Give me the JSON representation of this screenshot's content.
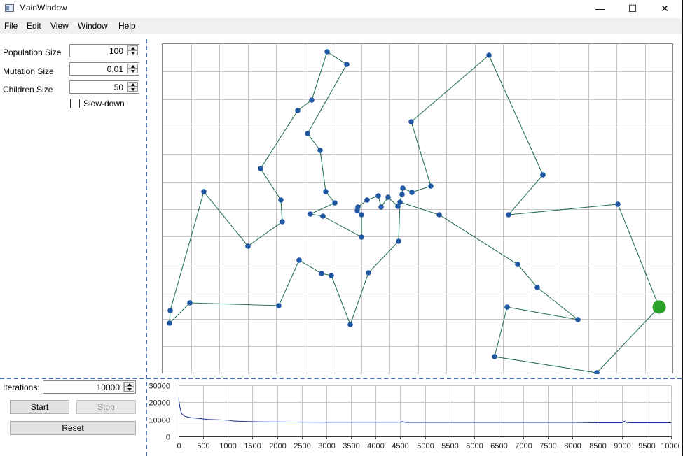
{
  "window": {
    "title": "MainWindow",
    "controls": {
      "minimize": "—",
      "maximize": "☐",
      "close": "✕"
    }
  },
  "menu": [
    "File",
    "Edit",
    "View",
    "Window",
    "Help"
  ],
  "settings": {
    "population_label": "Population Size",
    "population_value": "100",
    "mutation_label": "Mutation Size",
    "mutation_value": "0,01",
    "children_label": "Children Size",
    "children_value": "50",
    "slowdown_label": "Slow-down",
    "slowdown_checked": false
  },
  "controls": {
    "iterations_label": "Iterations:",
    "iterations_value": "10000",
    "start_label": "Start",
    "stop_label": "Stop",
    "reset_label": "Reset",
    "stop_enabled": false
  },
  "colors": {
    "route": "#2b7352",
    "city": "#1f57a3",
    "start_city": "#2aa22a",
    "curve": "#1c2a8f",
    "grid": "#c6c6c6",
    "splitter": "#4f6fb0"
  },
  "tour": {
    "cities": [
      [
        940,
        438
      ],
      [
        851,
        532
      ],
      [
        705,
        509
      ],
      [
        723,
        438
      ],
      [
        824,
        456
      ],
      [
        766,
        410
      ],
      [
        738,
        377
      ],
      [
        626,
        306
      ],
      [
        570,
        288
      ],
      [
        568,
        344
      ],
      [
        525,
        389
      ],
      [
        499,
        463
      ],
      [
        472,
        393
      ],
      [
        458,
        390
      ],
      [
        426,
        371
      ],
      [
        397,
        436
      ],
      [
        270,
        432
      ],
      [
        241,
        461
      ],
      [
        242,
        443
      ],
      [
        290,
        273
      ],
      [
        353,
        351
      ],
      [
        402,
        316
      ],
      [
        400,
        285
      ],
      [
        371,
        240
      ],
      [
        424,
        157
      ],
      [
        444,
        142
      ],
      [
        466,
        73
      ],
      [
        494,
        91
      ],
      [
        438,
        190
      ],
      [
        456,
        214
      ],
      [
        464,
        273
      ],
      [
        477,
        289
      ],
      [
        442,
        305
      ],
      [
        460,
        308
      ],
      [
        515,
        338
      ],
      [
        515,
        306
      ],
      [
        509,
        300
      ],
      [
        510,
        295
      ],
      [
        523,
        285
      ],
      [
        539,
        279
      ],
      [
        543,
        295
      ],
      [
        553,
        281
      ],
      [
        567,
        294
      ],
      [
        573,
        277
      ],
      [
        574,
        268
      ],
      [
        587,
        274
      ],
      [
        614,
        265
      ],
      [
        586,
        173
      ],
      [
        697,
        78
      ],
      [
        774,
        249
      ],
      [
        725,
        306
      ],
      [
        881,
        291
      ]
    ],
    "start_index": 0
  },
  "chart_data": {
    "type": "line",
    "x": [
      0,
      25,
      60,
      100,
      150,
      250,
      400,
      600,
      800,
      1000,
      1100,
      1200,
      1400,
      1600,
      2000,
      2500,
      3000,
      3500,
      4000,
      4500,
      4550,
      4600,
      4700,
      5000,
      5500,
      6000,
      6500,
      7000,
      7500,
      8000,
      8500,
      9000,
      9050,
      9100,
      9200,
      9500,
      10000
    ],
    "series": [
      {
        "values": [
          22500,
          17000,
          13500,
          12300,
          11600,
          11000,
          10600,
          10000,
          9800,
          9500,
          9100,
          8900,
          8700,
          8600,
          8500,
          8400,
          8300,
          8300,
          8300,
          8300,
          8800,
          8200,
          8200,
          8200,
          8200,
          8200,
          8200,
          8200,
          8200,
          8200,
          8000,
          8000,
          8900,
          8100,
          8000,
          8000,
          8000
        ]
      }
    ],
    "xlim": [
      0,
      10000
    ],
    "ylim": [
      0,
      30000
    ],
    "xticks": [
      "0",
      "500",
      "1000",
      "1500",
      "2000",
      "2500",
      "3000",
      "3500",
      "4000",
      "4500",
      "5000",
      "5500",
      "6000",
      "6500",
      "7000",
      "7500",
      "8000",
      "8500",
      "9000",
      "9500",
      "10000"
    ],
    "yticks": [
      "0",
      "10000",
      "20000",
      "30000"
    ],
    "grid": true
  }
}
